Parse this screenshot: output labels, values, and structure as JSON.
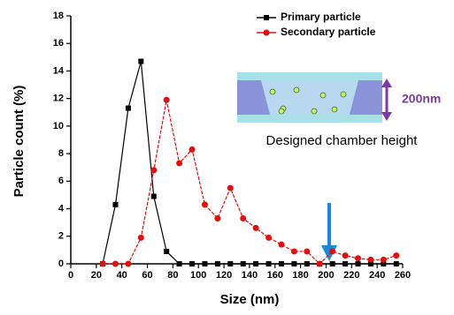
{
  "chart_data": {
    "type": "line",
    "x_label": "Size (nm)",
    "y_label": "Particle count (%)",
    "x": [
      25,
      35,
      45,
      55,
      65,
      75,
      85,
      95,
      105,
      115,
      125,
      135,
      145,
      155,
      165,
      175,
      185,
      195,
      205,
      215,
      225,
      235,
      245,
      255
    ],
    "series": [
      {
        "name": "Primary particle",
        "color": "#000000",
        "marker": "square",
        "values": [
          0,
          4.3,
          11.3,
          14.7,
          4.9,
          0.9,
          0,
          0,
          0,
          0,
          0,
          0,
          0,
          0,
          0,
          0,
          0,
          0,
          0,
          0,
          0,
          0,
          0,
          0
        ]
      },
      {
        "name": "Secondary particle",
        "color": "#e01010",
        "marker": "circle",
        "values": [
          0,
          0,
          0,
          1.9,
          6.8,
          11.9,
          7.3,
          8.3,
          4.3,
          3.3,
          5.5,
          3.3,
          2.6,
          1.9,
          1.4,
          0.9,
          0.9,
          0,
          0.9,
          0.6,
          0.4,
          0.3,
          0.3,
          0.6
        ]
      }
    ],
    "xlim": [
      0,
      260
    ],
    "xticks": [
      0,
      20,
      40,
      60,
      80,
      100,
      120,
      140,
      160,
      180,
      200,
      220,
      240,
      260
    ],
    "ylim": [
      0,
      18
    ],
    "yticks": [
      0,
      2,
      4,
      6,
      8,
      10,
      12,
      14,
      16,
      18
    ],
    "annotations": {
      "height": "200nm",
      "caption": "Designed chamber height"
    }
  }
}
